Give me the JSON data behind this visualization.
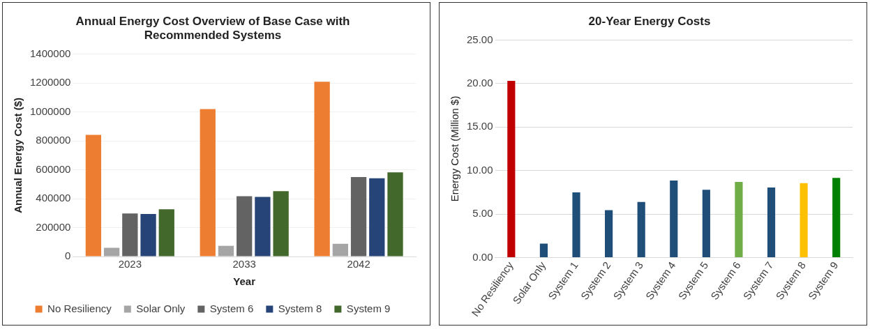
{
  "chart_data": [
    {
      "type": "bar",
      "title": "Annual Energy Cost Overview of Base Case with Recommended Systems",
      "xlabel": "Year",
      "ylabel": "Annual Energy Cost ($)",
      "categories": [
        "2023",
        "2033",
        "2042"
      ],
      "series": [
        {
          "name": "No Resiliency",
          "color": "#ed7d31",
          "values": [
            842000,
            1020000,
            1210000
          ]
        },
        {
          "name": "Solar Only",
          "color": "#a5a5a5",
          "values": [
            60000,
            74000,
            88000
          ]
        },
        {
          "name": "System 6",
          "color": "#636363",
          "values": [
            298000,
            417000,
            550000
          ]
        },
        {
          "name": "System 8",
          "color": "#264478",
          "values": [
            294000,
            413000,
            542000
          ]
        },
        {
          "name": "System 9",
          "color": "#43682b",
          "values": [
            327000,
            452000,
            582000
          ]
        }
      ],
      "ylim": [
        0,
        1400000
      ],
      "yticks": [
        0,
        200000,
        400000,
        600000,
        800000,
        1000000,
        1200000,
        1400000
      ],
      "grid": "y",
      "legend": "bottom"
    },
    {
      "type": "bar",
      "title": "20-Year Energy Costs",
      "ylabel": "Energy Cost (Million $)",
      "categories": [
        "No Resiliency",
        "Solar Only",
        "System 1",
        "System 2",
        "System 3",
        "System 4",
        "System 5",
        "System 6",
        "System 7",
        "System 8",
        "System 9"
      ],
      "values": [
        20.3,
        1.6,
        7.5,
        5.45,
        6.4,
        8.85,
        7.8,
        8.7,
        8.05,
        8.55,
        9.15
      ],
      "colors": [
        "#c00000",
        "#1f4e79",
        "#1f4e79",
        "#1f4e79",
        "#1f4e79",
        "#1f4e79",
        "#1f4e79",
        "#70ad47",
        "#1f4e79",
        "#ffc000",
        "#008000"
      ],
      "ylim": [
        0,
        25
      ],
      "yticks": [
        {
          "value": 0,
          "label": "0.00"
        },
        {
          "value": 5,
          "label": "5.00"
        },
        {
          "value": 10,
          "label": "10.00"
        },
        {
          "value": 15,
          "label": "15.00"
        },
        {
          "value": 20,
          "label": "20.00"
        },
        {
          "value": 25,
          "label": "25.00"
        }
      ],
      "grid": "y"
    }
  ]
}
